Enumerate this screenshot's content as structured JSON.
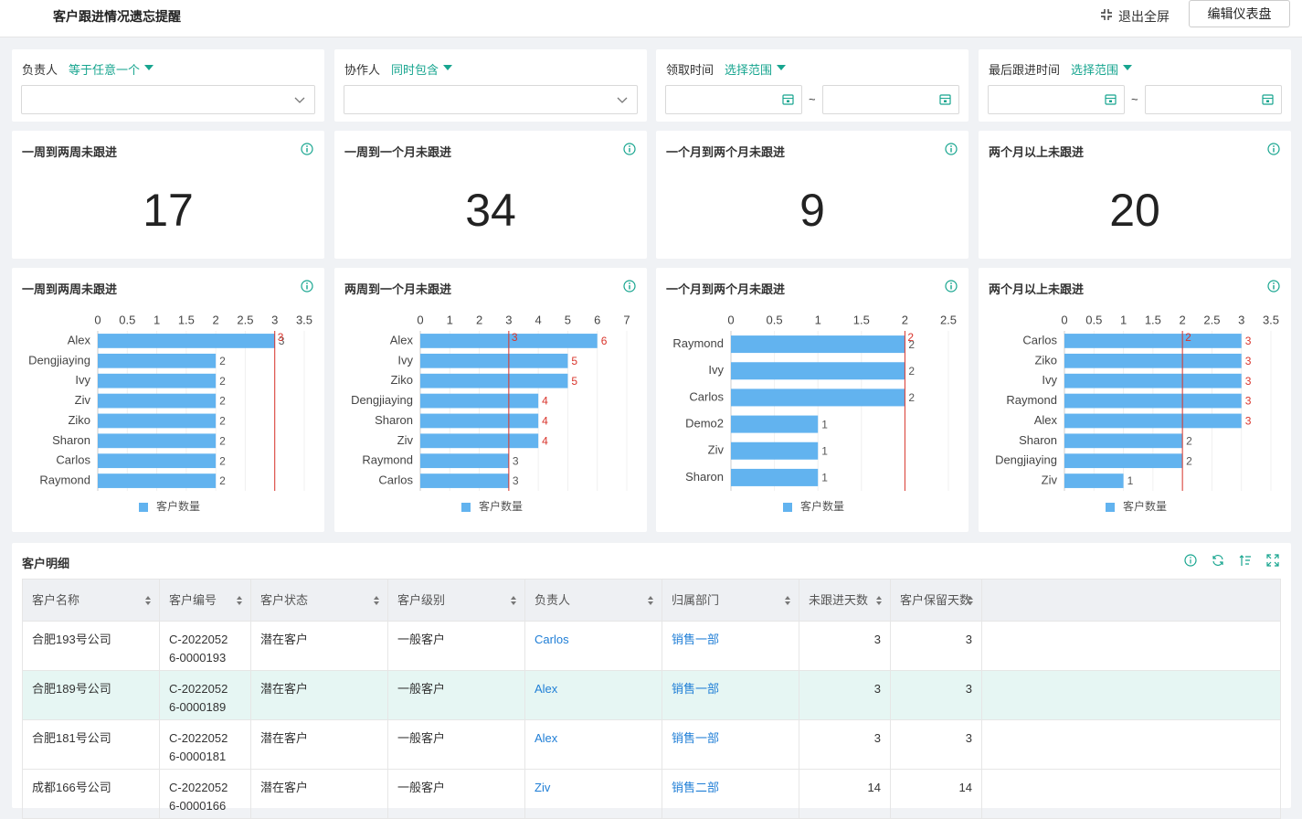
{
  "header": {
    "title": "客户跟进情况遗忘提醒",
    "exit_fullscreen": "退出全屏",
    "edit_button": "编辑仪表盘"
  },
  "filters": [
    {
      "label": "负责人",
      "mode": "等于任意一个"
    },
    {
      "label": "协作人",
      "mode": "同时包含"
    },
    {
      "label": "领取时间",
      "mode": "选择范围",
      "range_separator": "~"
    },
    {
      "label": "最后跟进时间",
      "mode": "选择范围",
      "range_separator": "~"
    }
  ],
  "kpis": [
    {
      "title": "一周到两周未跟进",
      "value": 17
    },
    {
      "title": "一周到一个月未跟进",
      "value": 34
    },
    {
      "title": "一个月到两个月未跟进",
      "value": 9
    },
    {
      "title": "两个月以上未跟进",
      "value": 20
    }
  ],
  "chart_data": [
    {
      "type": "bar",
      "title": "一周到两周未跟进",
      "legend": "客户数量",
      "color": "#62b3ef",
      "xlim": [
        0,
        3.5
      ],
      "xticks": [
        0,
        0.5,
        1,
        1.5,
        2,
        2.5,
        3,
        3.5
      ],
      "categories": [
        "Alex",
        "Dengjiaying",
        "Ivy",
        "Ziv",
        "Ziko",
        "Sharon",
        "Carlos",
        "Raymond"
      ],
      "values": [
        3,
        2,
        2,
        2,
        2,
        2,
        2,
        2
      ],
      "reference_line": 3
    },
    {
      "type": "bar",
      "title": "两周到一个月未跟进",
      "legend": "客户数量",
      "color": "#62b3ef",
      "xlim": [
        0,
        7
      ],
      "xticks": [
        0,
        1,
        2,
        3,
        4,
        5,
        6,
        7
      ],
      "categories": [
        "Alex",
        "Ivy",
        "Ziko",
        "Dengjiaying",
        "Sharon",
        "Ziv",
        "Raymond",
        "Carlos"
      ],
      "values": [
        6,
        5,
        5,
        4,
        4,
        4,
        3,
        3
      ],
      "reference_line": 3
    },
    {
      "type": "bar",
      "title": "一个月到两个月未跟进",
      "legend": "客户数量",
      "color": "#62b3ef",
      "xlim": [
        0,
        2.5
      ],
      "xticks": [
        0,
        0.5,
        1,
        1.5,
        2,
        2.5
      ],
      "categories": [
        "Raymond",
        "Ivy",
        "Carlos",
        "Demo2",
        "Ziv",
        "Sharon"
      ],
      "values": [
        2,
        2,
        2,
        1,
        1,
        1
      ],
      "reference_line": 2
    },
    {
      "type": "bar",
      "title": "两个月以上未跟进",
      "legend": "客户数量",
      "color": "#62b3ef",
      "xlim": [
        0,
        3.5
      ],
      "xticks": [
        0,
        0.5,
        1,
        1.5,
        2,
        2.5,
        3,
        3.5
      ],
      "categories": [
        "Carlos",
        "Ziko",
        "Ivy",
        "Raymond",
        "Alex",
        "Sharon",
        "Dengjiaying",
        "Ziv"
      ],
      "values": [
        3,
        3,
        3,
        3,
        3,
        2,
        2,
        1
      ],
      "reference_line": 2
    }
  ],
  "table": {
    "title": "客户明细",
    "columns": [
      "客户名称",
      "客户编号",
      "客户状态",
      "客户级别",
      "负责人",
      "归属部门",
      "未跟进天数",
      "客户保留天数"
    ],
    "rows": [
      [
        "合肥193号公司",
        "C-20220526-0000193",
        "潜在客户",
        "一般客户",
        "Carlos",
        "销售一部",
        3,
        3
      ],
      [
        "合肥189号公司",
        "C-20220526-0000189",
        "潜在客户",
        "一般客户",
        "Alex",
        "销售一部",
        3,
        3
      ],
      [
        "合肥181号公司",
        "C-20220526-0000181",
        "潜在客户",
        "一般客户",
        "Alex",
        "销售一部",
        3,
        3
      ],
      [
        "成都166号公司",
        "C-20220526-0000166",
        "潜在客户",
        "一般客户",
        "Ziv",
        "销售二部",
        14,
        14
      ]
    ]
  }
}
